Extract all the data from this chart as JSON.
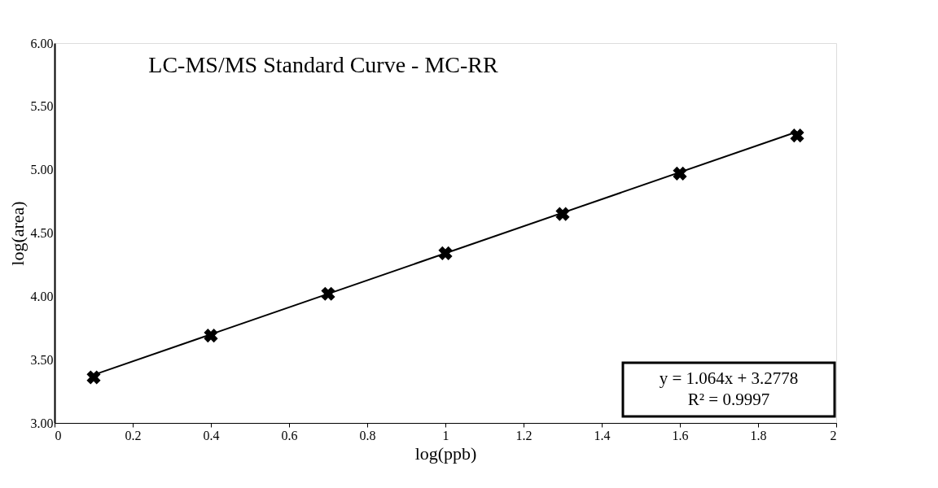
{
  "chart_data": {
    "type": "scatter",
    "title": "LC-MS/MS Standard Curve - MC-RR",
    "xlabel": "log(ppb)",
    "ylabel": "log(area)",
    "x": [
      0.1,
      0.4,
      0.7,
      1.0,
      1.3,
      1.6,
      1.9
    ],
    "series": [
      {
        "color": "#000000",
        "values": [
          3.36,
          3.69,
          4.02,
          4.34,
          4.65,
          4.97,
          5.27
        ]
      },
      {
        "type": "line",
        "color": "#000000",
        "x": [
          0.1,
          1.9
        ],
        "values": [
          3.38,
          5.3
        ],
        "marker": "none",
        "line_style": "solid"
      }
    ],
    "marker": "cross",
    "xlim": [
      0,
      2
    ],
    "xticks": [
      0,
      0.2,
      0.4,
      0.6,
      0.8,
      1,
      1.2,
      1.4,
      1.6,
      1.8,
      2
    ],
    "ylim": [
      3,
      6
    ],
    "yticks": [
      {
        "value": 3,
        "label": "3.00"
      },
      {
        "value": 3.5,
        "label": "3.50"
      },
      {
        "value": 4,
        "label": "4.00"
      },
      {
        "value": 4.5,
        "label": "4.50"
      },
      {
        "value": 5,
        "label": "5.00"
      },
      {
        "value": 5.5,
        "label": "5.50"
      },
      {
        "value": 6,
        "label": "6.00"
      }
    ],
    "annotations": [
      "y = 1.064x + 3.2778",
      "R² = 0.9997"
    ],
    "grid": false
  }
}
